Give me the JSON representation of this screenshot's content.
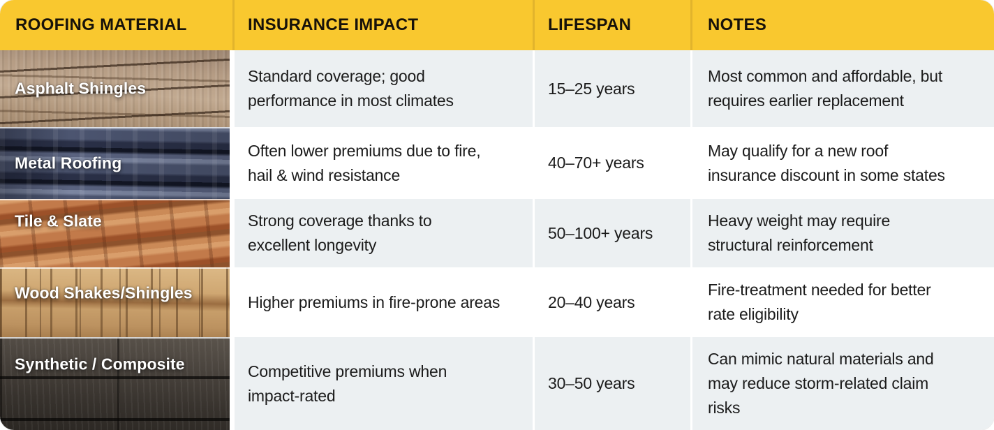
{
  "card": {
    "columns": [
      {
        "label": "ROOFING MATERIAL"
      },
      {
        "label": "INSURANCE IMPACT"
      },
      {
        "label": "LIFESPAN"
      },
      {
        "label": "NOTES"
      }
    ],
    "rows": [
      {
        "material": "Asphalt Shingles",
        "photo_icon": "asphalt-shingles-photo",
        "insurance": "Standard coverage; good\nperformance in most climates",
        "lifespan": "15–25 years",
        "notes": "Most common and affordable, but\nrequires earlier replacement"
      },
      {
        "material": "Metal Roofing",
        "photo_icon": "metal-roofing-photo",
        "insurance": "Often lower premiums due to fire,\nhail & wind resistance",
        "lifespan": "40–70+ years",
        "notes": "May qualify for a new roof\ninsurance discount in some states"
      },
      {
        "material": "Tile & Slate",
        "photo_icon": "tile-slate-photo",
        "insurance": "Strong coverage thanks to\nexcellent longevity",
        "lifespan": "50–100+ years",
        "notes": "Heavy weight may require\nstructural reinforcement"
      },
      {
        "material": "Wood Shakes/Shingles",
        "photo_icon": "wood-shakes-photo",
        "insurance": "Higher premiums in fire-prone areas",
        "lifespan": "20–40 years",
        "notes": "Fire-treatment needed for better\nrate eligibility"
      },
      {
        "material": "Synthetic / Composite",
        "photo_icon": "synthetic-composite-photo",
        "insurance": "Competitive premiums when\nimpact-rated",
        "lifespan": "30–50 years",
        "notes": "Can mimic natural materials and\nmay reduce storm-related claim\nrisks"
      }
    ],
    "colors": {
      "header_bg": "#F9C82F",
      "header_divider": "#E2B42C",
      "header_text": "#17120A",
      "row_alt_bg": "#ECF0F2",
      "row_bg": "#FFFFFF",
      "body_text": "#1B1B1B",
      "photo_label_text": "#FFFFFF"
    }
  }
}
